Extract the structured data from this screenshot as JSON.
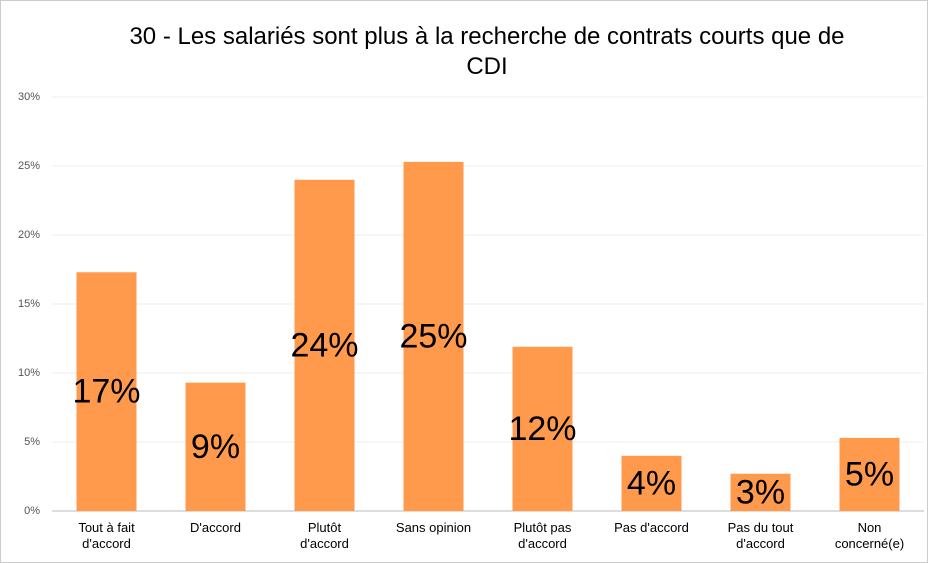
{
  "chart_data": {
    "type": "bar",
    "title": "30 - Les salariés sont plus à la recherche de contrats courts que de CDI",
    "categories": [
      "Tout à fait\nd'accord",
      "D'accord",
      "Plutôt\nd'accord",
      "Sans opinion",
      "Plutôt pas\nd'accord",
      "Pas d'accord",
      "Pas du tout\nd'accord",
      "Non\nconcerné(e)"
    ],
    "values": [
      17.3,
      9.3,
      24.0,
      25.3,
      11.9,
      4.0,
      2.7,
      5.3
    ],
    "value_labels": [
      "17%",
      "9%",
      "24%",
      "25%",
      "12%",
      "4%",
      "3%",
      "5%"
    ],
    "color": "#ff9a4d",
    "ylim": [
      0,
      30
    ],
    "yticks": [
      {
        "value": 0,
        "label": "0%"
      },
      {
        "value": 5,
        "label": "5%"
      },
      {
        "value": 10,
        "label": "10%"
      },
      {
        "value": 15,
        "label": "15%"
      },
      {
        "value": 20,
        "label": "20%"
      },
      {
        "value": 25,
        "label": "25%"
      },
      {
        "value": 30,
        "label": "30%"
      }
    ],
    "grid": true
  }
}
